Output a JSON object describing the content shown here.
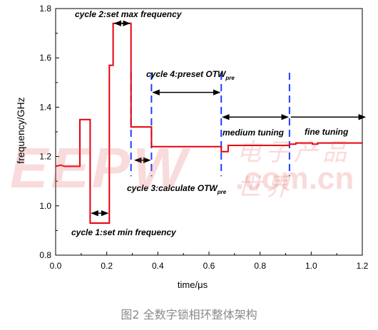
{
  "chart_data": {
    "type": "line",
    "ylabel": "frequency/GHz",
    "xlabel": "time/μs",
    "xlim": [
      0.0,
      1.2
    ],
    "ylim": [
      0.8,
      1.8
    ],
    "x_ticks": [
      "0.0",
      "0.2",
      "0.4",
      "0.6",
      "0.8",
      "1.0",
      "1.2"
    ],
    "y_ticks": [
      "0.8",
      "1.0",
      "1.2",
      "1.4",
      "1.6",
      "1.8"
    ],
    "series": [
      {
        "color": "#e8000c",
        "x": [
          0.0,
          0.02,
          0.035,
          0.095,
          0.095,
          0.135,
          0.135,
          0.21,
          0.21,
          0.225,
          0.225,
          0.227,
          0.227,
          0.295,
          0.295,
          0.305,
          0.305,
          0.375,
          0.375,
          0.648,
          0.648,
          0.675,
          0.675,
          0.915,
          0.915,
          0.94,
          0.94,
          1.005,
          1.005,
          1.025,
          1.025,
          1.2
        ],
        "y": [
          1.16,
          1.165,
          1.16,
          1.16,
          1.35,
          1.35,
          0.93,
          0.93,
          1.57,
          1.57,
          1.74,
          1.74,
          1.74,
          1.74,
          1.32,
          1.32,
          1.32,
          1.32,
          1.24,
          1.24,
          1.22,
          1.22,
          1.245,
          1.245,
          1.25,
          1.25,
          1.255,
          1.255,
          1.25,
          1.25,
          1.255,
          1.255
        ]
      }
    ],
    "phase_markers_x": [
      0.295,
      0.375,
      0.648,
      0.915
    ],
    "annotations": [
      {
        "text": "cycle 1:set min frequency"
      },
      {
        "text": "cycle 2:set max frequency"
      },
      {
        "text": "cycle 3:calculate OTW",
        "subscript": "pre"
      },
      {
        "text": "cycle 4:preset OTW",
        "subscript": "pre"
      },
      {
        "text": "medium tuning"
      },
      {
        "text": "fine tuning"
      }
    ],
    "grid": false,
    "legend": false
  },
  "watermark": {
    "primary": "EEPW",
    "secondary": ".com.cn",
    "chinese": "电子产品世界"
  },
  "caption": "图2 全数字锁相环整体架构"
}
